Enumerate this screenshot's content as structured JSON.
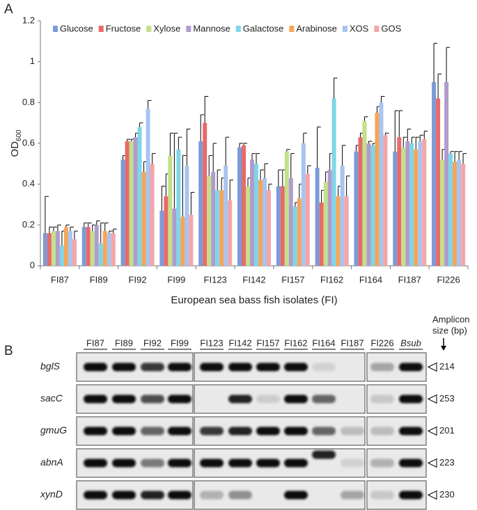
{
  "chart_data": {
    "type": "bar",
    "panel_label": "A",
    "x_label": "European sea bass fish isolates (FI)",
    "y_label": "OD",
    "y_label_sub": "600",
    "categories": [
      "FI87",
      "FI89",
      "FI92",
      "FI99",
      "FI123",
      "FI142",
      "FI157",
      "FI162",
      "FI164",
      "FI187",
      "FI226"
    ],
    "ylim": [
      0,
      1.2
    ],
    "yticks": [
      0,
      0.2,
      0.4,
      0.6,
      0.8,
      1,
      1.2
    ],
    "series": [
      {
        "name": "Glucose",
        "color": "#7b9bd8",
        "values": [
          0.16,
          0.19,
          0.52,
          0.27,
          0.61,
          0.58,
          0.39,
          0.48,
          0.56,
          0.56,
          0.9
        ],
        "errors": [
          0.18,
          0.02,
          0.02,
          0.12,
          0.13,
          0.02,
          0.08,
          0.2,
          0.03,
          0.2,
          0.19
        ]
      },
      {
        "name": "Fructose",
        "color": "#e86a6a",
        "values": [
          0.16,
          0.19,
          0.61,
          0.34,
          0.7,
          0.59,
          0.39,
          0.31,
          0.63,
          0.63,
          0.82
        ],
        "errors": [
          0.03,
          0.02,
          0.01,
          0.11,
          0.13,
          0.01,
          0.08,
          0.06,
          0.02,
          0.13,
          0.12
        ]
      },
      {
        "name": "Xylose",
        "color": "#c3e08a",
        "values": [
          0.17,
          0.17,
          0.61,
          0.54,
          0.44,
          0.39,
          0.56,
          0.41,
          0.71,
          0.58,
          0.52
        ],
        "errors": [
          0.02,
          0.03,
          0.01,
          0.11,
          0.1,
          0.04,
          0.01,
          0.05,
          0.02,
          0.05,
          0.05
        ]
      },
      {
        "name": "Mannose",
        "color": "#b09ccc",
        "values": [
          0.17,
          0.2,
          0.63,
          0.28,
          0.46,
          0.52,
          0.43,
          0.47,
          0.6,
          0.61,
          0.9
        ],
        "errors": [
          0.03,
          0.02,
          0.02,
          0.37,
          0.14,
          0.03,
          0.12,
          0.08,
          0.01,
          0.06,
          0.17
        ]
      },
      {
        "name": "Galactose",
        "color": "#7fd6e8",
        "values": [
          0.1,
          0.11,
          0.68,
          0.57,
          0.37,
          0.5,
          0.29,
          0.82,
          0.59,
          0.6,
          0.55
        ],
        "errors": [
          0.07,
          0.1,
          0.02,
          0.06,
          0.1,
          0.05,
          0.02,
          0.1,
          0.01,
          0.03,
          0.01
        ]
      },
      {
        "name": "Arabinose",
        "color": "#f5a55a",
        "values": [
          0.19,
          0.17,
          0.46,
          0.24,
          0.37,
          0.42,
          0.33,
          0.34,
          0.75,
          0.57,
          0.51
        ],
        "errors": [
          0.01,
          0.04,
          0.05,
          0.3,
          0.06,
          0.05,
          0.07,
          0.05,
          0.03,
          0.06,
          0.05
        ]
      },
      {
        "name": "XOS",
        "color": "#a8c4ef",
        "values": [
          0.17,
          0.16,
          0.77,
          0.49,
          0.49,
          0.43,
          0.6,
          0.49,
          0.8,
          0.61,
          0.52
        ],
        "errors": [
          0.02,
          0.01,
          0.04,
          0.18,
          0.14,
          0.07,
          0.05,
          0.1,
          0.03,
          0.03,
          0.04
        ]
      },
      {
        "name": "GOS",
        "color": "#f4a5a8",
        "values": [
          0.13,
          0.16,
          0.5,
          0.25,
          0.32,
          0.37,
          0.45,
          0.34,
          0.64,
          0.62,
          0.5
        ],
        "errors": [
          0.04,
          0.02,
          0.05,
          0.11,
          0.1,
          0.03,
          0.04,
          0.1,
          0.01,
          0.04,
          0.05
        ]
      }
    ]
  },
  "gel": {
    "panel_label": "B",
    "size_header": [
      "Amplicon",
      "size (bp)"
    ],
    "lane_groups": [
      [
        "FI87",
        "FI89",
        "FI92",
        "FI99"
      ],
      [
        "FI123",
        "FI142",
        "FI157",
        "FI162",
        "FI164",
        "FI187"
      ],
      [
        "FI226",
        "Bsub"
      ]
    ],
    "genes": [
      {
        "name": "bglS",
        "size": 214
      },
      {
        "name": "sacC",
        "size": 253
      },
      {
        "name": "gmuG",
        "size": 201
      },
      {
        "name": "abnA",
        "size": 223
      },
      {
        "name": "xynD",
        "size": 230
      }
    ]
  }
}
